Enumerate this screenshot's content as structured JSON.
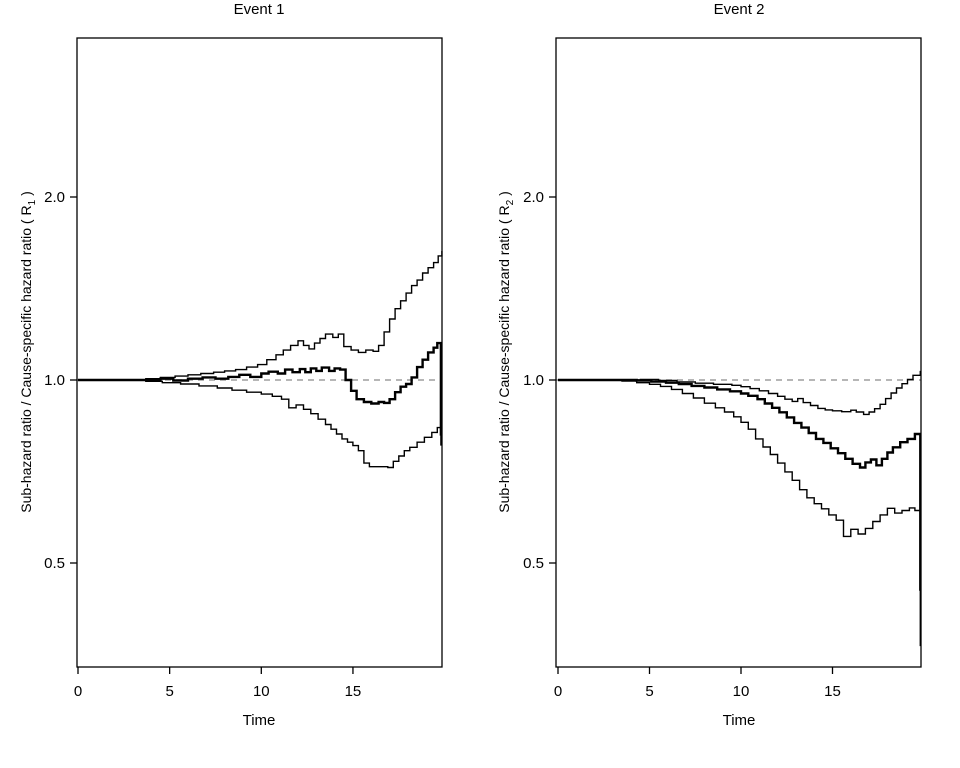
{
  "figure": {
    "background": "#ffffff",
    "line_color": "#000000",
    "reference_line_color": "#9e9e9e"
  },
  "chart_data": [
    {
      "type": "line",
      "subtype": "step",
      "title": "Event 1",
      "xlabel": "Time",
      "ylabel": {
        "prefix": "Sub-hazard ratio / Cause-specific hazard ratio ( R",
        "sub": "1",
        "suffix": " )"
      },
      "x_tick_values": [
        0,
        5,
        10,
        15
      ],
      "x_tick_labels": [
        "0",
        "5",
        "10",
        "15"
      ],
      "y_tick_values": [
        0.5,
        1.0,
        2.0
      ],
      "y_tick_labels": [
        "0.5",
        "1.0",
        "2.0"
      ],
      "x_range": [
        0,
        19.9
      ],
      "y_range": [
        0.34,
        3.6
      ],
      "y_scale": "log2",
      "grid": "off",
      "reference_line": 1.0,
      "reference_line_style": "dashed",
      "series": [
        {
          "name": "upper_band",
          "line": "thin",
          "points": [
            [
              0,
              1
            ],
            [
              3.7,
              1.005
            ],
            [
              4.5,
              1.01
            ],
            [
              5.3,
              1.015
            ],
            [
              6,
              1.02
            ],
            [
              6.7,
              1.025
            ],
            [
              7.4,
              1.03
            ],
            [
              8,
              1.035
            ],
            [
              8.6,
              1.04
            ],
            [
              9.2,
              1.05
            ],
            [
              9.8,
              1.06
            ],
            [
              10.3,
              1.08
            ],
            [
              10.8,
              1.1
            ],
            [
              11.2,
              1.12
            ],
            [
              11.6,
              1.14
            ],
            [
              12,
              1.16
            ],
            [
              12.3,
              1.14
            ],
            [
              12.6,
              1.125
            ],
            [
              12.9,
              1.15
            ],
            [
              13.2,
              1.17
            ],
            [
              13.5,
              1.19
            ],
            [
              13.9,
              1.175
            ],
            [
              14.2,
              1.19
            ],
            [
              14.5,
              1.135
            ],
            [
              14.9,
              1.12
            ],
            [
              15.3,
              1.11
            ],
            [
              15.7,
              1.12
            ],
            [
              16.1,
              1.115
            ],
            [
              16.4,
              1.14
            ],
            [
              16.7,
              1.2
            ],
            [
              17,
              1.26
            ],
            [
              17.3,
              1.31
            ],
            [
              17.6,
              1.35
            ],
            [
              17.9,
              1.39
            ],
            [
              18.2,
              1.43
            ],
            [
              18.5,
              1.46
            ],
            [
              18.8,
              1.5
            ],
            [
              19.1,
              1.53
            ],
            [
              19.4,
              1.56
            ],
            [
              19.65,
              1.6
            ],
            [
              19.85,
              1.63
            ]
          ]
        },
        {
          "name": "lower_band",
          "line": "thin",
          "points": [
            [
              0,
              1
            ],
            [
              3.7,
              0.995
            ],
            [
              4.6,
              0.99
            ],
            [
              5.6,
              0.985
            ],
            [
              6.6,
              0.978
            ],
            [
              7.6,
              0.97
            ],
            [
              8.4,
              0.962
            ],
            [
              9.2,
              0.955
            ],
            [
              10,
              0.948
            ],
            [
              10.6,
              0.94
            ],
            [
              11.1,
              0.93
            ],
            [
              11.5,
              0.9
            ],
            [
              11.9,
              0.91
            ],
            [
              12.3,
              0.895
            ],
            [
              12.7,
              0.88
            ],
            [
              13.1,
              0.862
            ],
            [
              13.5,
              0.845
            ],
            [
              13.8,
              0.83
            ],
            [
              14.1,
              0.815
            ],
            [
              14.4,
              0.8
            ],
            [
              14.7,
              0.79
            ],
            [
              15,
              0.78
            ],
            [
              15.3,
              0.765
            ],
            [
              15.6,
              0.73
            ],
            [
              15.9,
              0.72
            ],
            [
              16.9,
              0.718
            ],
            [
              17.2,
              0.735
            ],
            [
              17.5,
              0.75
            ],
            [
              17.8,
              0.765
            ],
            [
              18.1,
              0.775
            ],
            [
              18.5,
              0.79
            ],
            [
              18.9,
              0.805
            ],
            [
              19.3,
              0.82
            ],
            [
              19.6,
              0.835
            ],
            [
              19.8,
              0.78
            ]
          ]
        },
        {
          "name": "estimate",
          "line": "thick",
          "points": [
            [
              0,
              1
            ],
            [
              3.7,
              1
            ],
            [
              4.5,
              1.005
            ],
            [
              5.2,
              0.998
            ],
            [
              6,
              1.005
            ],
            [
              6.8,
              1.01
            ],
            [
              7.5,
              1.005
            ],
            [
              8.2,
              1.012
            ],
            [
              8.8,
              1.02
            ],
            [
              9.4,
              1.012
            ],
            [
              10,
              1.025
            ],
            [
              10.4,
              1.032
            ],
            [
              10.9,
              1.025
            ],
            [
              11.3,
              1.04
            ],
            [
              11.7,
              1.03
            ],
            [
              12.1,
              1.042
            ],
            [
              12.4,
              1.03
            ],
            [
              12.7,
              1.045
            ],
            [
              13,
              1.035
            ],
            [
              13.3,
              1.048
            ],
            [
              13.7,
              1.035
            ],
            [
              14,
              1.045
            ],
            [
              14.3,
              1.04
            ],
            [
              14.6,
              1.0
            ],
            [
              14.9,
              0.96
            ],
            [
              15.2,
              0.93
            ],
            [
              15.6,
              0.92
            ],
            [
              16,
              0.915
            ],
            [
              16.4,
              0.92
            ],
            [
              16.7,
              0.917
            ],
            [
              17,
              0.93
            ],
            [
              17.3,
              0.955
            ],
            [
              17.6,
              0.975
            ],
            [
              17.9,
              0.985
            ],
            [
              18.2,
              1.01
            ],
            [
              18.5,
              1.05
            ],
            [
              18.8,
              1.08
            ],
            [
              19.1,
              1.11
            ],
            [
              19.4,
              1.13
            ],
            [
              19.6,
              1.15
            ],
            [
              19.8,
              0.81
            ]
          ]
        }
      ]
    },
    {
      "type": "line",
      "subtype": "step",
      "title": "Event 2",
      "xlabel": "Time",
      "ylabel": {
        "prefix": "Sub-hazard ratio / Cause-specific hazard ratio ( R",
        "sub": "2",
        "suffix": " )"
      },
      "x_tick_values": [
        0,
        5,
        10,
        15
      ],
      "x_tick_labels": [
        "0",
        "5",
        "10",
        "15"
      ],
      "y_tick_values": [
        0.5,
        1.0,
        2.0
      ],
      "y_tick_labels": [
        "0.5",
        "1.0",
        "2.0"
      ],
      "x_range": [
        0,
        19.9
      ],
      "y_range": [
        0.34,
        3.6
      ],
      "y_scale": "log2",
      "grid": "off",
      "reference_line": 1.0,
      "reference_line_style": "dashed",
      "series": [
        {
          "name": "upper_band",
          "line": "thin",
          "points": [
            [
              0,
              1
            ],
            [
              3.5,
              1
            ],
            [
              4.5,
              1.002
            ],
            [
              5.5,
              0.998
            ],
            [
              6.5,
              0.993
            ],
            [
              7.5,
              0.988
            ],
            [
              8.5,
              0.984
            ],
            [
              9.5,
              0.98
            ],
            [
              10,
              0.975
            ],
            [
              10.5,
              0.968
            ],
            [
              11,
              0.96
            ],
            [
              11.5,
              0.95
            ],
            [
              12,
              0.94
            ],
            [
              12.4,
              0.93
            ],
            [
              12.8,
              0.922
            ],
            [
              13.1,
              0.932
            ],
            [
              13.4,
              0.918
            ],
            [
              13.8,
              0.908
            ],
            [
              14.2,
              0.898
            ],
            [
              14.6,
              0.893
            ],
            [
              15,
              0.89
            ],
            [
              15.5,
              0.887
            ],
            [
              16,
              0.892
            ],
            [
              16.3,
              0.886
            ],
            [
              16.7,
              0.878
            ],
            [
              17,
              0.886
            ],
            [
              17.3,
              0.897
            ],
            [
              17.6,
              0.912
            ],
            [
              17.9,
              0.932
            ],
            [
              18.2,
              0.952
            ],
            [
              18.5,
              0.97
            ],
            [
              18.8,
              0.986
            ],
            [
              19.1,
              1.002
            ],
            [
              19.4,
              1.018
            ],
            [
              19.8,
              1.035
            ]
          ]
        },
        {
          "name": "lower_band",
          "line": "thin",
          "points": [
            [
              0,
              1
            ],
            [
              3.5,
              0.996
            ],
            [
              4.3,
              0.99
            ],
            [
              5,
              0.984
            ],
            [
              5.6,
              0.976
            ],
            [
              6.2,
              0.965
            ],
            [
              6.8,
              0.95
            ],
            [
              7.4,
              0.934
            ],
            [
              8,
              0.916
            ],
            [
              8.6,
              0.9
            ],
            [
              9.1,
              0.886
            ],
            [
              9.6,
              0.87
            ],
            [
              10,
              0.852
            ],
            [
              10.4,
              0.83
            ],
            [
              10.8,
              0.8
            ],
            [
              11.2,
              0.776
            ],
            [
              11.6,
              0.754
            ],
            [
              12,
              0.73
            ],
            [
              12.4,
              0.706
            ],
            [
              12.8,
              0.684
            ],
            [
              13.2,
              0.66
            ],
            [
              13.6,
              0.64
            ],
            [
              14,
              0.626
            ],
            [
              14.4,
              0.614
            ],
            [
              14.8,
              0.6
            ],
            [
              15.2,
              0.588
            ],
            [
              15.6,
              0.553
            ],
            [
              16,
              0.568
            ],
            [
              16.4,
              0.558
            ],
            [
              16.8,
              0.57
            ],
            [
              17.2,
              0.585
            ],
            [
              17.6,
              0.6
            ],
            [
              18,
              0.615
            ],
            [
              18.4,
              0.604
            ],
            [
              18.8,
              0.61
            ],
            [
              19.2,
              0.616
            ],
            [
              19.5,
              0.61
            ],
            [
              19.8,
              0.365
            ]
          ]
        },
        {
          "name": "estimate",
          "line": "thick",
          "points": [
            [
              0,
              1
            ],
            [
              3.5,
              1
            ],
            [
              4.3,
              0.998
            ],
            [
              5.1,
              0.994
            ],
            [
              5.9,
              0.99
            ],
            [
              6.6,
              0.985
            ],
            [
              7.3,
              0.978
            ],
            [
              8,
              0.972
            ],
            [
              8.7,
              0.965
            ],
            [
              9.4,
              0.958
            ],
            [
              10,
              0.95
            ],
            [
              10.4,
              0.942
            ],
            [
              10.9,
              0.93
            ],
            [
              11.3,
              0.915
            ],
            [
              11.7,
              0.9
            ],
            [
              12.1,
              0.885
            ],
            [
              12.5,
              0.868
            ],
            [
              12.9,
              0.85
            ],
            [
              13.3,
              0.835
            ],
            [
              13.7,
              0.818
            ],
            [
              14.1,
              0.8
            ],
            [
              14.5,
              0.788
            ],
            [
              14.9,
              0.772
            ],
            [
              15.3,
              0.758
            ],
            [
              15.7,
              0.742
            ],
            [
              16.1,
              0.728
            ],
            [
              16.5,
              0.718
            ],
            [
              16.8,
              0.732
            ],
            [
              17.1,
              0.74
            ],
            [
              17.4,
              0.724
            ],
            [
              17.7,
              0.742
            ],
            [
              18,
              0.76
            ],
            [
              18.3,
              0.775
            ],
            [
              18.7,
              0.79
            ],
            [
              19.1,
              0.8
            ],
            [
              19.5,
              0.815
            ],
            [
              19.8,
              0.45
            ]
          ]
        }
      ]
    }
  ]
}
